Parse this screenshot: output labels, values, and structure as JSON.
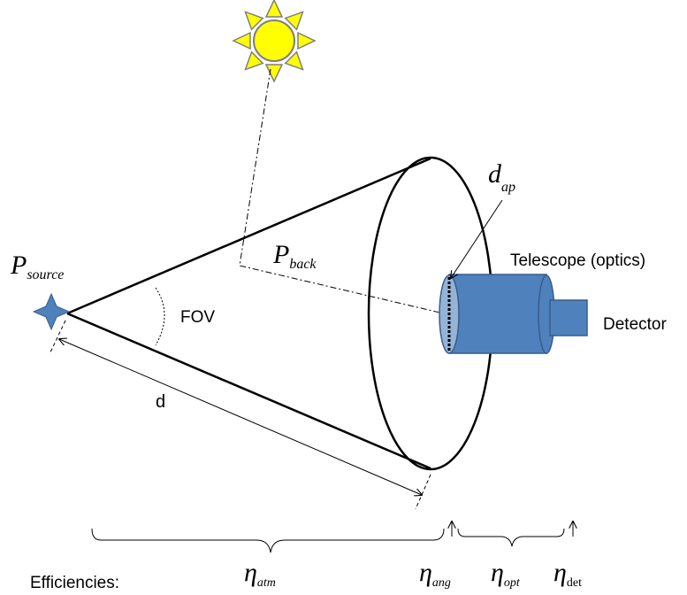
{
  "labels": {
    "p_source": {
      "main": "P",
      "sub": "source"
    },
    "p_back": {
      "main": "P",
      "sub": "back"
    },
    "d_ap": {
      "main": "d",
      "sub": "ap"
    },
    "fov": "FOV",
    "distance": "d",
    "telescope": "Telescope (optics)",
    "detector": "Detector",
    "efficiencies": "Efficiencies:",
    "eta_atm": {
      "main": "η",
      "sub": "atm"
    },
    "eta_ang": {
      "main": "η",
      "sub": "ang"
    },
    "eta_opt": {
      "main": "η",
      "sub": "opt"
    },
    "eta_det": {
      "main": "η",
      "sub": "det"
    }
  },
  "icons": {
    "sun": "sun-icon",
    "source": "star-icon"
  },
  "colors": {
    "sun_fill": "#FFFF00",
    "sun_stroke": "#7F7F7F",
    "sun_ray_fill": "#FFFF00",
    "telescope_fill": "#4F81BD",
    "telescope_stroke": "#385D8A",
    "aperture_fill": "#95B3D7",
    "source_fill": "#4F81BD",
    "line": "#000000"
  }
}
